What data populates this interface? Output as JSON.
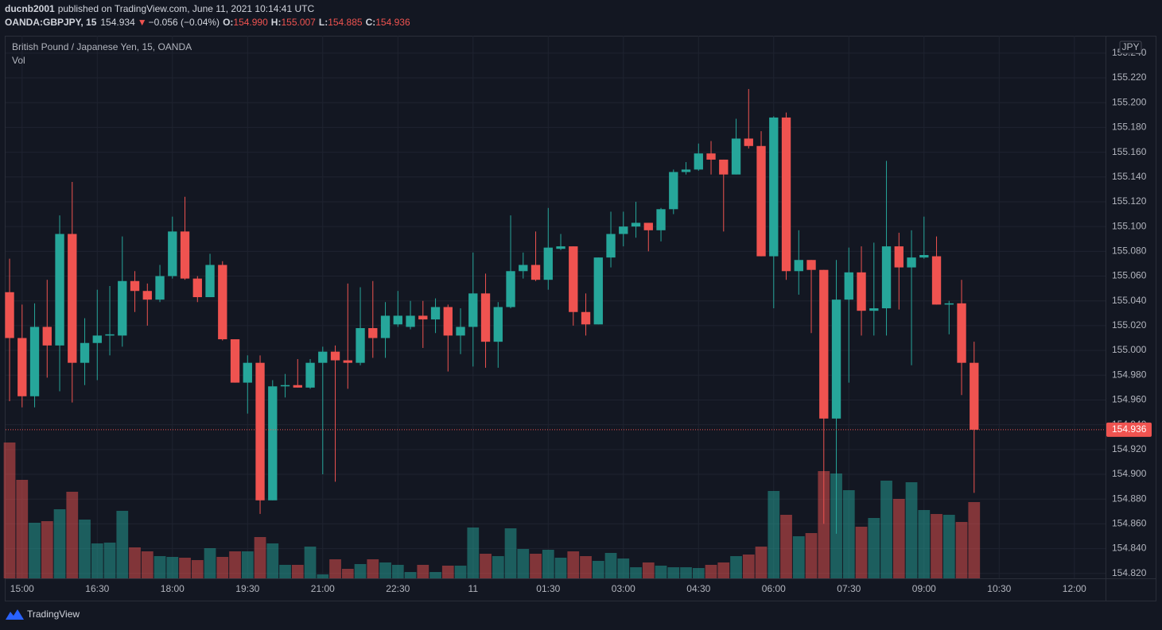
{
  "header": {
    "author": "ducnb2001",
    "published": "published on TradingView.com, June 11, 2021 10:14:41 UTC",
    "symbol": "OANDA:GBPJPY, 15",
    "price": "154.934",
    "arrow": "▼",
    "change": "−0.056 (−0.04%)",
    "o_label": "O:",
    "o_value": "154.990",
    "h_label": "H:",
    "h_value": "155.007",
    "l_label": "L:",
    "l_value": "154.885",
    "c_label": "C:",
    "c_value": "154.936"
  },
  "footer": {
    "brand": "TradingView"
  },
  "chart_data": {
    "type": "candlestick",
    "title": "British Pound / Japanese Yen, 15, OANDA",
    "volume_label": "Vol",
    "currency": "JPY",
    "up_color": "#26a69a",
    "down_color": "#ef5350",
    "grid": true,
    "last_price_label": "154.936",
    "xlim": [
      -0.32,
      87.49
    ],
    "xticks": [
      {
        "value": 1,
        "label": "15:00"
      },
      {
        "value": 7,
        "label": "16:30"
      },
      {
        "value": 13,
        "label": "18:00"
      },
      {
        "value": 19,
        "label": "19:30"
      },
      {
        "value": 25,
        "label": "21:00"
      },
      {
        "value": 31,
        "label": "22:30"
      },
      {
        "value": 37,
        "label": "11"
      },
      {
        "value": 43,
        "label": "01:30"
      },
      {
        "value": 49,
        "label": "03:00"
      },
      {
        "value": 55,
        "label": "04:30"
      },
      {
        "value": 61,
        "label": "06:00"
      },
      {
        "value": 67,
        "label": "07:30"
      },
      {
        "value": 73,
        "label": "09:00"
      },
      {
        "value": 79,
        "label": "10:30"
      },
      {
        "value": 85,
        "label": "12:00"
      }
    ],
    "ylim": [
      154.816,
      155.254
    ],
    "yticks": [
      {
        "value": 155.24,
        "label": "155.240"
      },
      {
        "value": 155.22,
        "label": "155.220"
      },
      {
        "value": 155.2,
        "label": "155.200"
      },
      {
        "value": 155.18,
        "label": "155.180"
      },
      {
        "value": 155.16,
        "label": "155.160"
      },
      {
        "value": 155.14,
        "label": "155.140"
      },
      {
        "value": 155.12,
        "label": "155.120"
      },
      {
        "value": 155.1,
        "label": "155.100"
      },
      {
        "value": 155.08,
        "label": "155.080"
      },
      {
        "value": 155.06,
        "label": "155.060"
      },
      {
        "value": 155.04,
        "label": "155.040"
      },
      {
        "value": 155.02,
        "label": "155.020"
      },
      {
        "value": 155,
        "label": "155.000"
      },
      {
        "value": 154.98,
        "label": "154.980"
      },
      {
        "value": 154.96,
        "label": "154.960"
      },
      {
        "value": 154.94,
        "label": "154.940"
      },
      {
        "value": 154.92,
        "label": "154.920"
      },
      {
        "value": 154.9,
        "label": "154.900"
      },
      {
        "value": 154.88,
        "label": "154.880"
      },
      {
        "value": 154.86,
        "label": "154.860"
      },
      {
        "value": 154.84,
        "label": "154.840"
      },
      {
        "value": 154.82,
        "label": "154.820"
      }
    ],
    "volume_lim": [
      0,
      683
    ],
    "open": [
      155.047,
      155.01,
      154.963,
      155.019,
      155.004,
      155.094,
      154.99,
      155.006,
      155.012,
      155.012,
      155.056,
      155.048,
      155.041,
      155.06,
      155.096,
      155.058,
      155.043,
      155.069,
      155.009,
      154.974,
      154.99,
      154.879,
      154.971,
      154.972,
      154.97,
      154.99,
      154.999,
      154.992,
      154.99,
      155.018,
      155.01,
      155.021,
      155.019,
      155.028,
      155.025,
      155.035,
      155.012,
      155.019,
      155.046,
      155.007,
      155.035,
      155.064,
      155.069,
      155.057,
      155.082,
      155.084,
      155.031,
      155.021,
      155.075,
      155.094,
      155.1,
      155.103,
      155.097,
      155.114,
      155.144,
      155.146,
      155.159,
      155.154,
      155.142,
      155.171,
      155.165,
      155.076,
      155.188,
      155.064,
      155.073,
      155.065,
      154.945,
      155.041,
      155.063,
      155.032,
      155.034,
      155.084,
      155.067,
      155.075,
      155.076,
      155.037,
      155.038,
      154.99
    ],
    "high": [
      155.074,
      155.037,
      155.038,
      155.057,
      155.109,
      155.136,
      155.026,
      155.049,
      155.052,
      155.092,
      155.064,
      155.054,
      155.069,
      155.108,
      155.124,
      155.06,
      155.078,
      155.072,
      155.009,
      154.996,
      154.996,
      154.976,
      154.981,
      154.993,
      154.993,
      155.003,
      155.004,
      155.054,
      155.051,
      155.056,
      155.039,
      155.048,
      155.04,
      155.04,
      155.042,
      155.037,
      155.034,
      155.079,
      155.062,
      155.039,
      155.109,
      155.079,
      155.096,
      155.115,
      155.094,
      155.084,
      155.046,
      155.075,
      155.112,
      155.112,
      155.12,
      155.103,
      155.115,
      155.146,
      155.152,
      155.167,
      155.169,
      155.154,
      155.187,
      155.211,
      155.177,
      155.189,
      155.192,
      155.097,
      155.073,
      155.065,
      155.073,
      155.083,
      155.084,
      155.087,
      155.153,
      155.095,
      155.097,
      155.108,
      155.092,
      155.04,
      155.057,
      155.007
    ],
    "low": [
      154.959,
      154.954,
      154.954,
      154.978,
      154.967,
      154.958,
      154.972,
      154.976,
      154.996,
      155.003,
      155.031,
      155.02,
      155.039,
      155.058,
      155.057,
      155.039,
      155.043,
      155.008,
      154.974,
      154.949,
      154.868,
      154.879,
      154.962,
      154.97,
      154.969,
      154.9,
      154.894,
      154.969,
      154.988,
      154.994,
      154.994,
      155.019,
      155.017,
      155.002,
      155.014,
      154.983,
      154.997,
      154.987,
      154.986,
      154.986,
      155.034,
      155.058,
      155.056,
      155.049,
      155.081,
      155.02,
      155.012,
      155.021,
      155.067,
      155.084,
      155.091,
      155.08,
      155.088,
      155.11,
      155.142,
      155.145,
      155.142,
      155.096,
      155.142,
      155.163,
      155.076,
      155.034,
      155.057,
      155.045,
      155.014,
      154.86,
      154.852,
      154.974,
      155.012,
      155.012,
      155.012,
      155.033,
      154.988,
      155.074,
      155.037,
      155.013,
      154.964,
      154.885
    ],
    "close": [
      155.01,
      154.963,
      155.019,
      155.004,
      155.094,
      154.99,
      155.006,
      155.012,
      155.013,
      155.056,
      155.048,
      155.041,
      155.06,
      155.096,
      155.058,
      155.043,
      155.069,
      155.009,
      154.974,
      154.99,
      154.879,
      154.971,
      154.972,
      154.97,
      154.99,
      154.999,
      154.992,
      154.99,
      155.018,
      155.01,
      155.028,
      155.028,
      155.028,
      155.025,
      155.035,
      155.012,
      155.019,
      155.046,
      155.007,
      155.035,
      155.064,
      155.069,
      155.057,
      155.083,
      155.084,
      155.031,
      155.021,
      155.075,
      155.094,
      155.1,
      155.103,
      155.097,
      155.114,
      155.144,
      155.146,
      155.159,
      155.154,
      155.142,
      155.171,
      155.165,
      155.076,
      155.188,
      155.064,
      155.073,
      155.065,
      154.945,
      155.041,
      155.063,
      155.032,
      155.034,
      155.084,
      155.067,
      155.075,
      155.077,
      155.037,
      155.038,
      154.99,
      154.936
    ],
    "volume": [
      171,
      124,
      70,
      72,
      87,
      109,
      74,
      44,
      45,
      85,
      39,
      34,
      28,
      27,
      26,
      23,
      38,
      27,
      34,
      34,
      52,
      44,
      17,
      17,
      40,
      5,
      24,
      12,
      18,
      24,
      20,
      17,
      8,
      17,
      8,
      16,
      16,
      64,
      31,
      28,
      63,
      37,
      31,
      36,
      26,
      34,
      28,
      22,
      32,
      25,
      14,
      20,
      16,
      14,
      14,
      13,
      17,
      20,
      28,
      30,
      40,
      110,
      80,
      53,
      57,
      135,
      132,
      111,
      65,
      76,
      123,
      100,
      121,
      86,
      81,
      80,
      71,
      96
    ]
  }
}
